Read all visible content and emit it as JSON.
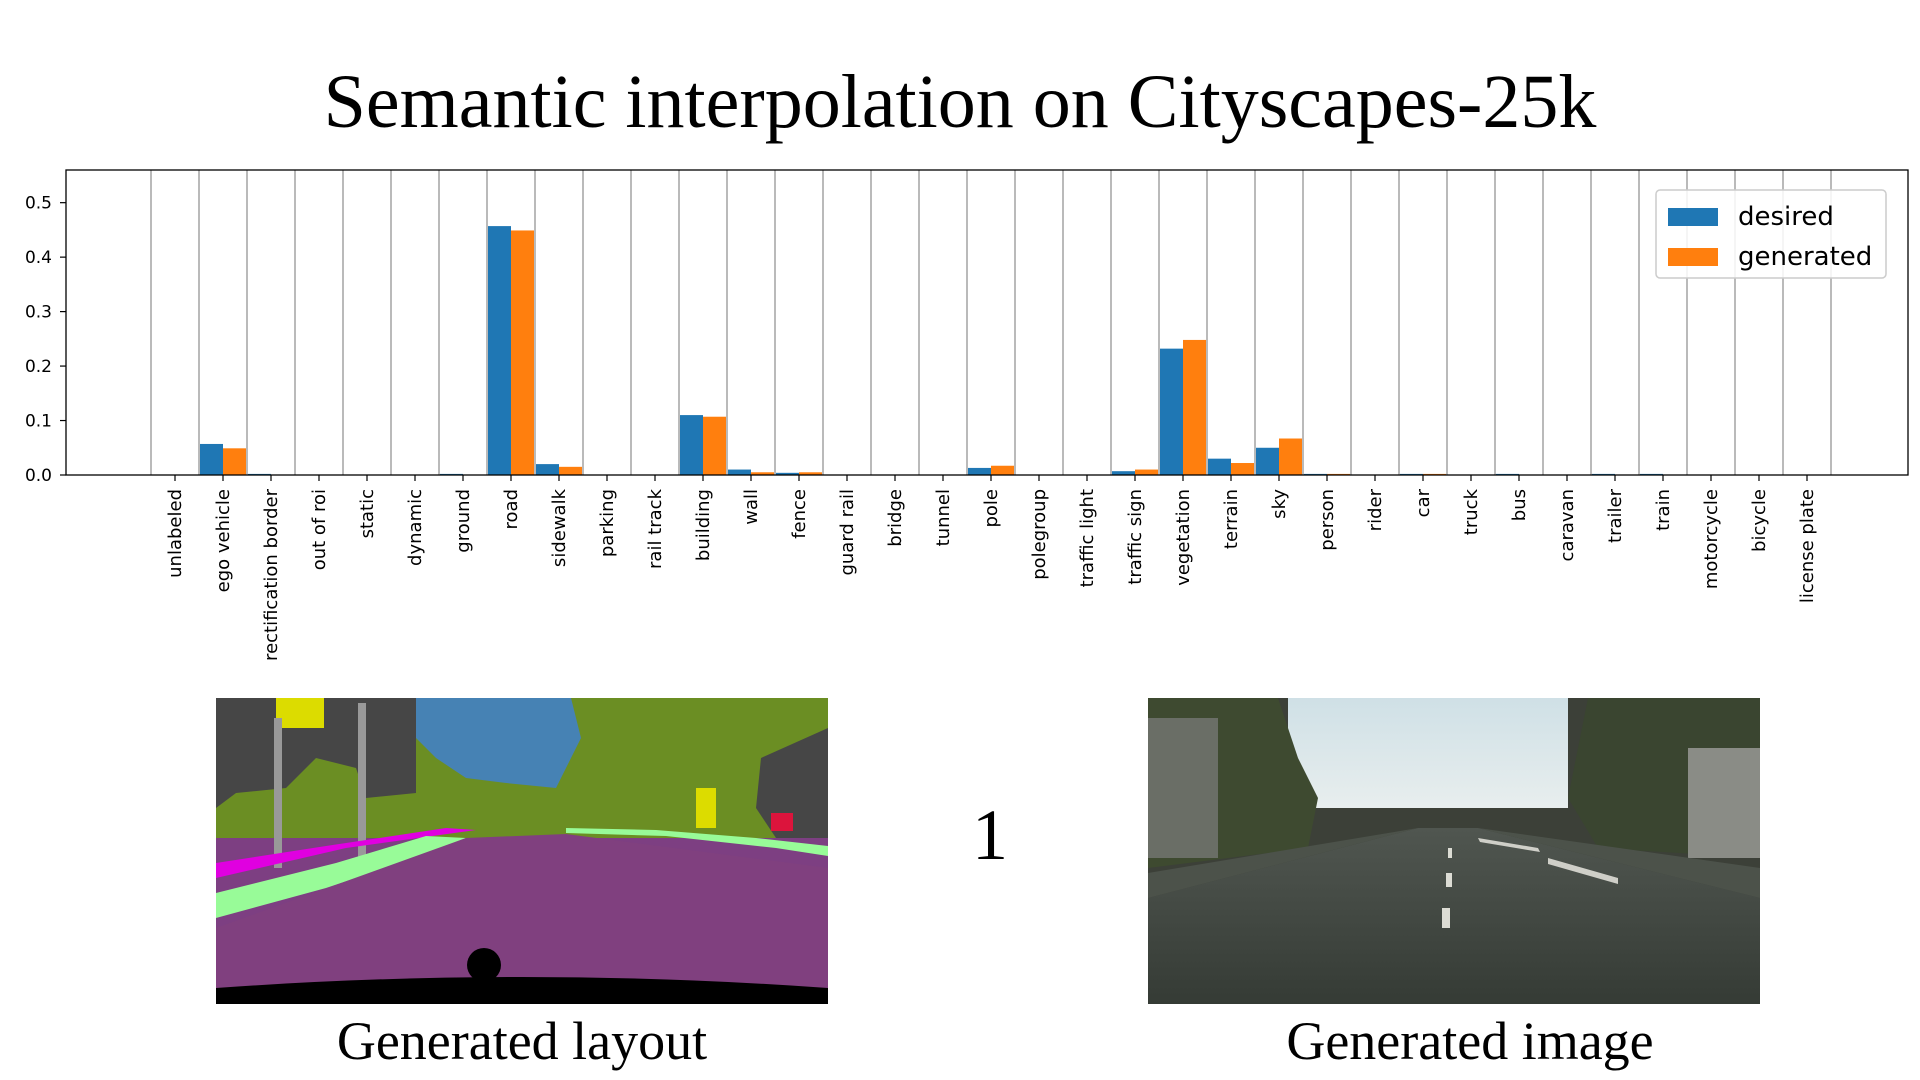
{
  "title": "Semantic interpolation on Cityscapes-25k",
  "chart_data": {
    "type": "bar",
    "categories": [
      "unlabeled",
      "ego vehicle",
      "rectification border",
      "out of roi",
      "static",
      "dynamic",
      "ground",
      "road",
      "sidewalk",
      "parking",
      "rail track",
      "building",
      "wall",
      "fence",
      "guard rail",
      "bridge",
      "tunnel",
      "pole",
      "polegroup",
      "traffic light",
      "traffic sign",
      "vegetation",
      "terrain",
      "sky",
      "person",
      "rider",
      "car",
      "truck",
      "bus",
      "caravan",
      "trailer",
      "train",
      "motorcycle",
      "bicycle",
      "license plate"
    ],
    "series": [
      {
        "name": "desired",
        "color": "#1f77b4",
        "values": [
          0,
          0.057,
          0.002,
          0,
          0,
          0,
          0.002,
          0.457,
          0.02,
          0,
          0,
          0.11,
          0.01,
          0.004,
          0,
          0,
          0,
          0.013,
          0,
          0,
          0.007,
          0.232,
          0.03,
          0.05,
          0.002,
          0,
          0.002,
          0,
          0.002,
          0,
          0.002,
          0.002,
          0,
          0,
          0
        ]
      },
      {
        "name": "generated",
        "color": "#ff7f0e",
        "values": [
          0,
          0.049,
          0,
          0,
          0,
          0,
          0,
          0.449,
          0.015,
          0,
          0,
          0.107,
          0.005,
          0.005,
          0,
          0,
          0,
          0.017,
          0,
          0,
          0.01,
          0.248,
          0.022,
          0.067,
          0.002,
          0,
          0.002,
          0,
          0,
          0,
          0,
          0,
          0,
          0,
          0
        ]
      }
    ],
    "yticks": [
      "0.0",
      "0.1",
      "0.2",
      "0.3",
      "0.4",
      "0.5"
    ],
    "ylim": [
      0,
      0.56
    ],
    "grid": "vertical lines between categories",
    "legend": "top-right"
  },
  "frame_number": "1",
  "layout_caption": "Generated layout",
  "image_caption": "Generated image"
}
